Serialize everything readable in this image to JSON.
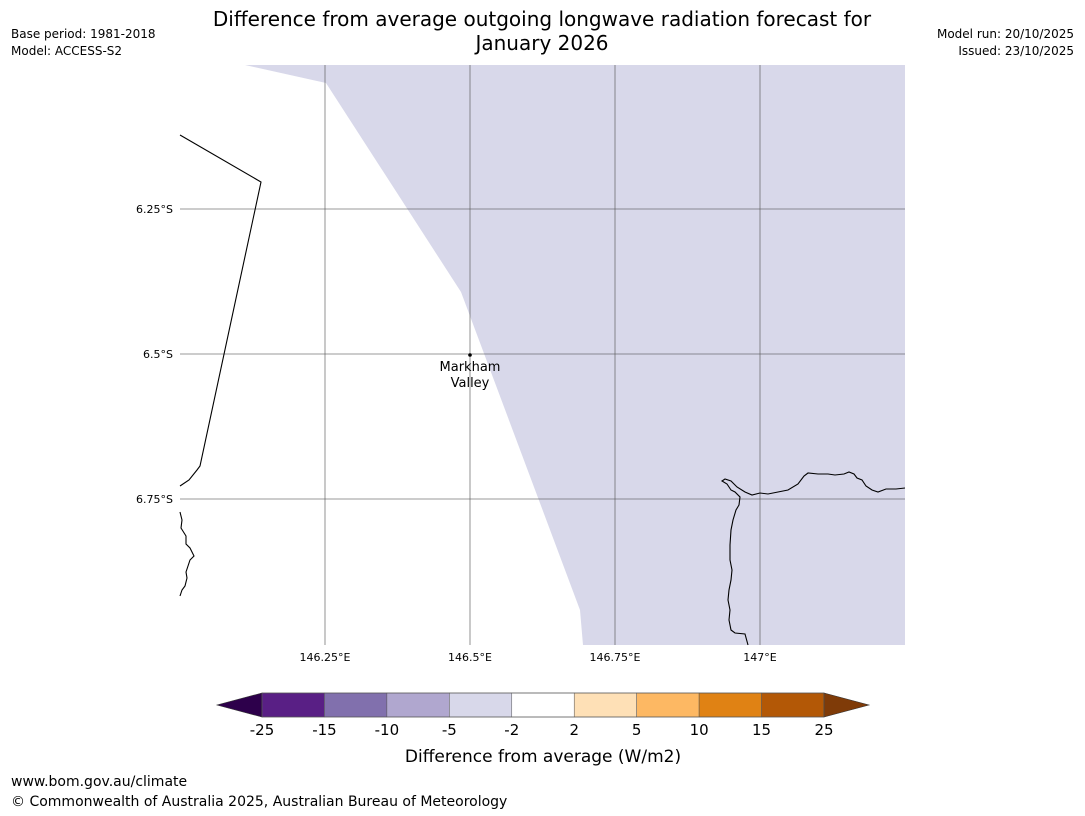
{
  "header": {
    "left_lines": [
      "Base period: 1981-2018",
      "Model: ACCESS-S2"
    ],
    "right_lines": [
      "Model run: 20/10/2025",
      "Issued: 23/10/2025"
    ],
    "title_lines": [
      "Difference from average outgoing longwave radiation forecast for",
      "January 2026"
    ]
  },
  "map": {
    "lon_labels": [
      "146.25°E",
      "146.5°E",
      "146.75°E",
      "147°E"
    ],
    "lat_labels": [
      "6.25°S",
      "6.5°S",
      "6.75°S"
    ],
    "place": {
      "name_lines": [
        "Markham",
        "Valley"
      ]
    },
    "anomaly_category": "-5 to -2 W/m2",
    "anomaly_color": "#d8d8ea"
  },
  "colorbar": {
    "tick_labels": [
      "-25",
      "-15",
      "-10",
      "-5",
      "-2",
      "2",
      "5",
      "10",
      "15",
      "25"
    ],
    "colors": [
      "#591f85",
      "#8170ad",
      "#b0a7cf",
      "#d8d8ea",
      "#ffffff",
      "#fee0b6",
      "#fdb863",
      "#e08214",
      "#b35806"
    ],
    "under_color": "#2d004b",
    "over_color": "#7f3b08",
    "label": "Difference from average (W/m2)"
  },
  "footer": {
    "url": "www.bom.gov.au/climate",
    "copyright": "© Commonwealth of Australia 2025, Australian Bureau of Meteorology"
  }
}
